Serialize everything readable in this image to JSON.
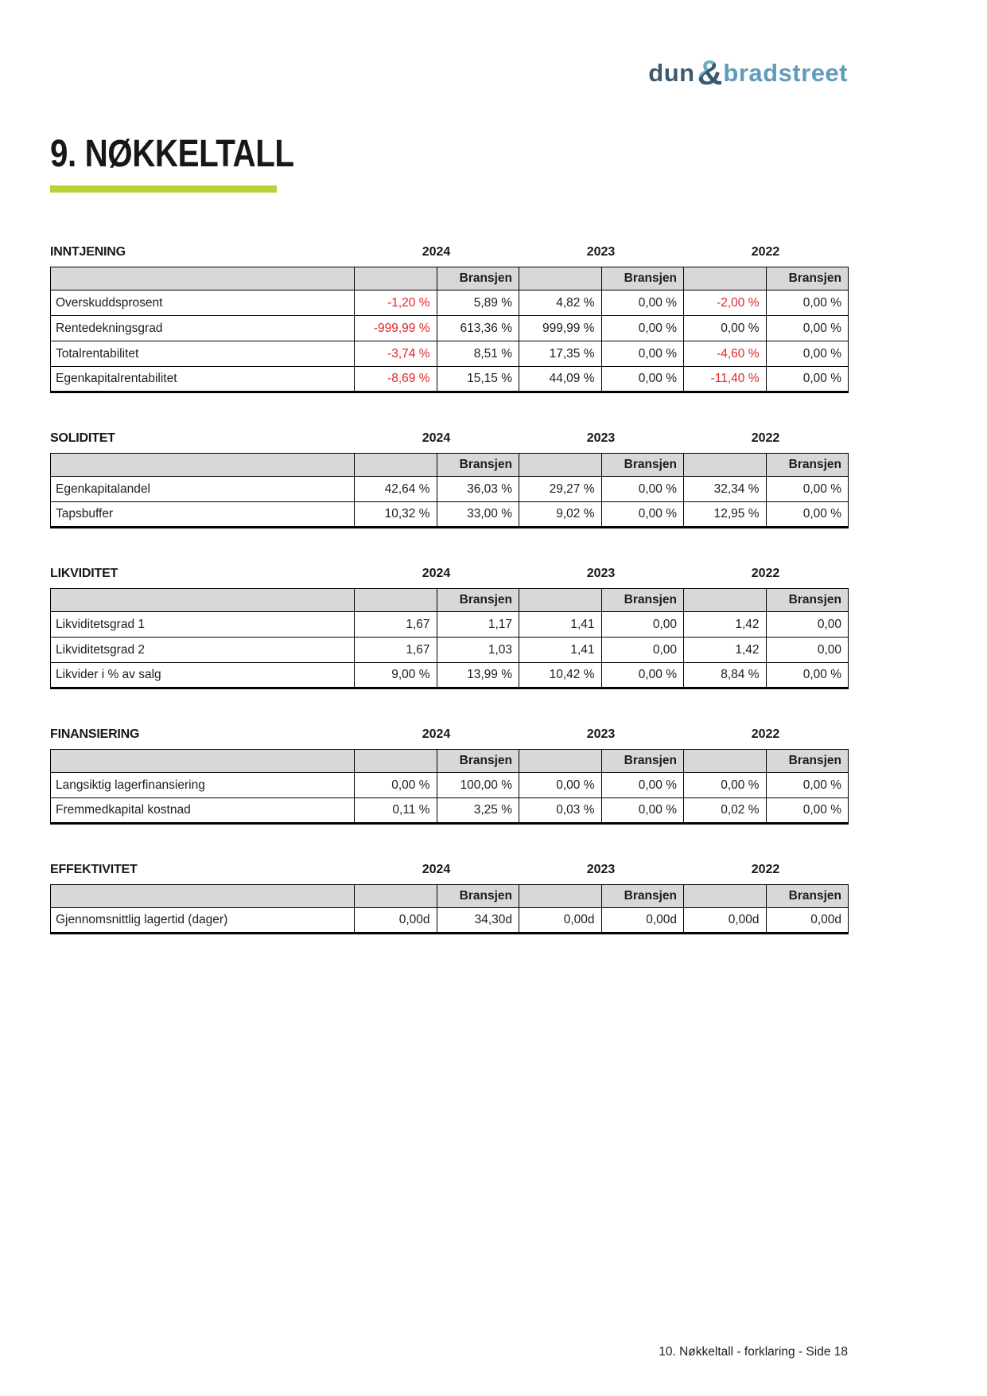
{
  "logo": {
    "dun": "dun",
    "ampersand": "&",
    "bradstreet": "bradstreet"
  },
  "page_title": "9. NØKKELTALL",
  "years": [
    "2024",
    "2023",
    "2022"
  ],
  "bransjen_label": "Bransjen",
  "colors": {
    "accent_green": "#b5d334",
    "negative_red": "#e32526",
    "header_gray": "#d8d8d8",
    "logo_dark_blue": "#3d5a73",
    "logo_light_blue": "#5f9cbc"
  },
  "sections": [
    {
      "title": "INNTJENING",
      "rows": [
        {
          "label": "Overskuddsprosent",
          "values": [
            "-1,20 %",
            "5,89 %",
            "4,82 %",
            "0,00 %",
            "-2,00 %",
            "0,00 %"
          ]
        },
        {
          "label": "Rentedekningsgrad",
          "values": [
            "-999,99 %",
            "613,36 %",
            "999,99 %",
            "0,00 %",
            "0,00 %",
            "0,00 %"
          ]
        },
        {
          "label": "Totalrentabilitet",
          "values": [
            "-3,74 %",
            "8,51 %",
            "17,35 %",
            "0,00 %",
            "-4,60 %",
            "0,00 %"
          ]
        },
        {
          "label": "Egenkapitalrentabilitet",
          "values": [
            "-8,69 %",
            "15,15 %",
            "44,09 %",
            "0,00 %",
            "-11,40 %",
            "0,00 %"
          ]
        }
      ]
    },
    {
      "title": "SOLIDITET",
      "rows": [
        {
          "label": "Egenkapitalandel",
          "values": [
            "42,64 %",
            "36,03 %",
            "29,27 %",
            "0,00 %",
            "32,34 %",
            "0,00 %"
          ]
        },
        {
          "label": "Tapsbuffer",
          "values": [
            "10,32 %",
            "33,00 %",
            "9,02 %",
            "0,00 %",
            "12,95 %",
            "0,00 %"
          ]
        }
      ]
    },
    {
      "title": "LIKVIDITET",
      "rows": [
        {
          "label": "Likviditetsgrad 1",
          "values": [
            "1,67",
            "1,17",
            "1,41",
            "0,00",
            "1,42",
            "0,00"
          ]
        },
        {
          "label": "Likviditetsgrad 2",
          "values": [
            "1,67",
            "1,03",
            "1,41",
            "0,00",
            "1,42",
            "0,00"
          ]
        },
        {
          "label": "Likvider i % av salg",
          "values": [
            "9,00 %",
            "13,99 %",
            "10,42 %",
            "0,00 %",
            "8,84 %",
            "0,00 %"
          ]
        }
      ]
    },
    {
      "title": "FINANSIERING",
      "rows": [
        {
          "label": "Langsiktig lagerfinansiering",
          "values": [
            "0,00 %",
            "100,00 %",
            "0,00 %",
            "0,00 %",
            "0,00 %",
            "0,00 %"
          ]
        },
        {
          "label": "Fremmedkapital kostnad",
          "values": [
            "0,11 %",
            "3,25 %",
            "0,03 %",
            "0,00 %",
            "0,02 %",
            "0,00 %"
          ]
        }
      ]
    },
    {
      "title": "EFFEKTIVITET",
      "rows": [
        {
          "label": "Gjennomsnittlig lagertid (dager)",
          "values": [
            "0,00d",
            "34,30d",
            "0,00d",
            "0,00d",
            "0,00d",
            "0,00d"
          ]
        }
      ]
    }
  ],
  "footer": "10. Nøkkeltall - forklaring - Side 18"
}
